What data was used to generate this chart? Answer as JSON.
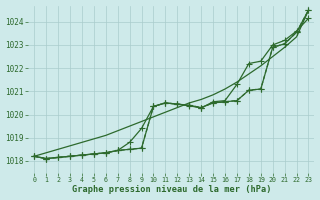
{
  "title": "Graphe pression niveau de la mer (hPa)",
  "background_color": "#ceeaea",
  "grid_color": "#aacccc",
  "line_color": "#2d6a2d",
  "xlim": [
    -0.5,
    23.5
  ],
  "ylim": [
    1017.5,
    1024.7
  ],
  "yticks": [
    1018,
    1019,
    1020,
    1021,
    1022,
    1023,
    1024
  ],
  "xticks": [
    0,
    1,
    2,
    3,
    4,
    5,
    6,
    7,
    8,
    9,
    10,
    11,
    12,
    13,
    14,
    15,
    16,
    17,
    18,
    19,
    20,
    21,
    22,
    23
  ],
  "series_dotted": [
    1018.2,
    1018.1,
    1018.15,
    1018.2,
    1018.25,
    1018.3,
    1018.35,
    1018.45,
    1018.5,
    1018.55,
    1020.35,
    1020.5,
    1020.45,
    1020.4,
    1020.3,
    1020.5,
    1020.55,
    1020.6,
    1021.05,
    1021.1,
    1022.9,
    1023.05,
    1023.55,
    1024.5
  ],
  "series_main1": [
    1018.2,
    1018.1,
    1018.15,
    1018.2,
    1018.25,
    1018.3,
    1018.35,
    1018.45,
    1018.5,
    1018.55,
    1020.35,
    1020.5,
    1020.45,
    1020.4,
    1020.3,
    1020.5,
    1020.55,
    1020.6,
    1021.05,
    1021.1,
    1022.9,
    1023.05,
    1023.55,
    1024.5
  ],
  "series_main2": [
    1018.2,
    1018.1,
    1018.15,
    1018.2,
    1018.25,
    1018.3,
    1018.35,
    1018.45,
    1018.8,
    1019.4,
    1020.35,
    1020.5,
    1020.45,
    1020.38,
    1020.28,
    1020.55,
    1020.6,
    1021.3,
    1022.2,
    1022.3,
    1023.0,
    1023.2,
    1023.6,
    1024.15
  ],
  "series_smooth": [
    1018.2,
    1018.35,
    1018.5,
    1018.65,
    1018.8,
    1018.95,
    1019.1,
    1019.3,
    1019.5,
    1019.7,
    1019.9,
    1020.1,
    1020.3,
    1020.5,
    1020.65,
    1020.85,
    1021.1,
    1021.4,
    1021.75,
    1022.1,
    1022.5,
    1022.9,
    1023.35,
    1024.5
  ]
}
